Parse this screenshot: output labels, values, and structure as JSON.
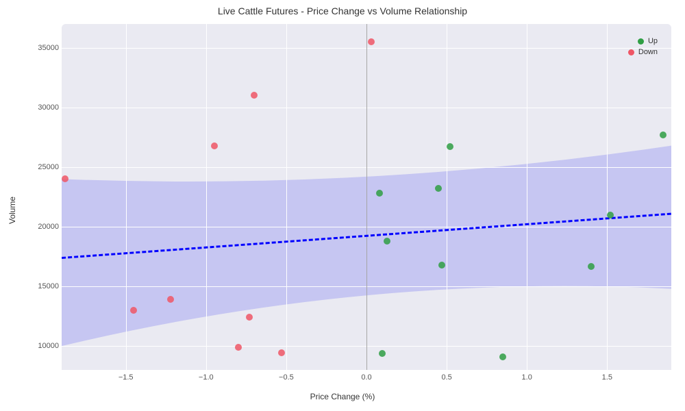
{
  "chart": {
    "type": "scatter",
    "title": "Live Cattle Futures - Price Change vs Volume Relationship",
    "title_fontsize": 14,
    "xlabel": "Price Change (%)",
    "ylabel": "Volume",
    "label_fontsize": 12,
    "tick_fontsize": 11,
    "background_color": "#ffffff",
    "plot_bgcolor": "#eaeaf2",
    "grid_color": "#ffffff",
    "zeroline_color": "#808080",
    "xlim": [
      -1.9,
      1.9
    ],
    "ylim": [
      8000,
      37000
    ],
    "yticks": [
      10000,
      15000,
      20000,
      25000,
      30000,
      35000
    ],
    "xticks": [
      -1.5,
      -1.0,
      -0.5,
      0.0,
      0.5,
      1.0,
      1.5
    ],
    "ytick_labels": [
      "10000",
      "15000",
      "20000",
      "25000",
      "30000",
      "35000"
    ],
    "xtick_labels": [
      "−1.5",
      "−1.0",
      "−0.5",
      "0.0",
      "0.5",
      "1.0",
      "1.5"
    ],
    "series": {
      "up": {
        "color": "#2f9e44",
        "label": "Up",
        "marker_size": 10,
        "points": [
          {
            "x": 0.08,
            "y": 22800
          },
          {
            "x": 0.13,
            "y": 18800
          },
          {
            "x": 0.1,
            "y": 9400
          },
          {
            "x": 0.45,
            "y": 23200
          },
          {
            "x": 0.47,
            "y": 16800
          },
          {
            "x": 0.52,
            "y": 26700
          },
          {
            "x": 0.85,
            "y": 9100
          },
          {
            "x": 1.4,
            "y": 16700
          },
          {
            "x": 1.52,
            "y": 21000
          },
          {
            "x": 1.85,
            "y": 27700
          }
        ]
      },
      "down": {
        "color": "#ef5666",
        "label": "Down",
        "marker_size": 10,
        "points": [
          {
            "x": 0.03,
            "y": 35500
          },
          {
            "x": -0.53,
            "y": 9450
          },
          {
            "x": -0.7,
            "y": 31000
          },
          {
            "x": -0.73,
            "y": 12400
          },
          {
            "x": -0.8,
            "y": 9900
          },
          {
            "x": -0.95,
            "y": 26800
          },
          {
            "x": -1.22,
            "y": 13900
          },
          {
            "x": -1.45,
            "y": 13000
          },
          {
            "x": -1.88,
            "y": 24000
          }
        ]
      }
    },
    "regression": {
      "line_color": "#0000ff",
      "line_width": 3,
      "dash": "8 6",
      "y_at_xmin": 17500,
      "y_at_xmax": 21200,
      "ci_color": "#4a4af0",
      "ci_upper_at_xmin": 24000,
      "ci_lower_at_xmin": 10000,
      "ci_upper_at_xmax": 26800,
      "ci_lower_at_xmax": 14800,
      "ci_upper_mid": 23000,
      "ci_lower_mid": 16100
    },
    "legend": {
      "items": [
        {
          "label": "Up",
          "color": "#2f9e44"
        },
        {
          "label": "Down",
          "color": "#ef5666"
        }
      ]
    }
  }
}
